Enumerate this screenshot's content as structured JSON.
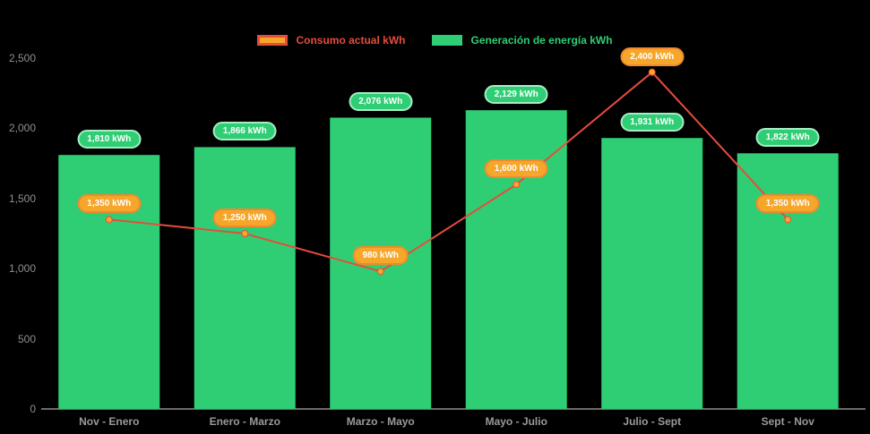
{
  "legend": {
    "items": [
      {
        "label": "Consumo actual kWh",
        "swatch_fill": "#f6a62b",
        "swatch_border": "#e74c3c",
        "label_color": "#e74c3c"
      },
      {
        "label": "Generación de energía kWh",
        "swatch_fill": "#2fce75",
        "swatch_border": "#2fce75",
        "label_color": "#2fce75"
      }
    ]
  },
  "chart_data": {
    "type": "bar+line",
    "title": "",
    "categories": [
      "Nov - Enero",
      "Enero - Marzo",
      "Marzo - Mayo",
      "Mayo - Julio",
      "Julio - Sept",
      "Sept - Nov"
    ],
    "series": [
      {
        "name": "Generación de energía kWh",
        "type": "bar",
        "color": "#2fce75",
        "values": [
          1810,
          1866,
          2076,
          2129,
          1931,
          1822
        ],
        "labels": [
          "1,810 kWh",
          "1,866 kWh",
          "2,076 kWh",
          "2,129 kWh",
          "1,931 kWh",
          "1,822 kWh"
        ],
        "badge_bg": "#2fce75",
        "badge_border": "#a6ecc5"
      },
      {
        "name": "Consumo actual kWh",
        "type": "line",
        "color": "#e74c3c",
        "marker_color": "#f6a62b",
        "values": [
          1350,
          1250,
          980,
          1600,
          2400,
          1350
        ],
        "labels": [
          "1,350 kWh",
          "1,250 kWh",
          "980 kWh",
          "1,600 kWh",
          "2,400 kWh",
          "1,350 kWh"
        ],
        "badge_bg": "#f6a62b",
        "badge_border": "#ef8a2e"
      }
    ],
    "y_axis": {
      "tick_values": [
        0,
        500,
        1000,
        1500,
        2000,
        2500
      ],
      "tick_labels": [
        "0",
        "500",
        "1,000",
        "1,500",
        "2,000",
        "2,500"
      ]
    },
    "ylim": [
      0,
      2500
    ],
    "grid": false,
    "legend_position": "top",
    "background": "#000000",
    "axis_line_color": "#d8d8d8"
  }
}
